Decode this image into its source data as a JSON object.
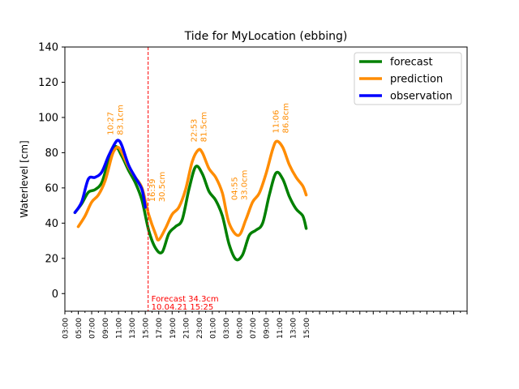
{
  "chart_data": {
    "type": "line",
    "title": "Tide for MyLocation (ebbing)",
    "xlabel": "",
    "ylabel": "Waterlevel [cm]",
    "ylim": [
      -10,
      140
    ],
    "xlim_hours": [
      3,
      63
    ],
    "yticks": [
      0,
      20,
      40,
      60,
      80,
      100,
      120,
      140
    ],
    "xtick_labels": [
      "03:00",
      "05:00",
      "07:00",
      "09:00",
      "11:00",
      "13:00",
      "15:00",
      "17:00",
      "19:00",
      "21:00",
      "23:00",
      "01:00",
      "03:00",
      "05:00",
      "07:00",
      "09:00",
      "11:00",
      "13:00",
      "15:00"
    ],
    "grid": false,
    "legend_position": "top-right",
    "series": [
      {
        "name": "forecast",
        "color": "#008000",
        "points": [
          [
            4.5,
            46
          ],
          [
            5.5,
            51
          ],
          [
            6.5,
            57.5
          ],
          [
            7.5,
            59
          ],
          [
            8.5,
            63
          ],
          [
            9.5,
            75
          ],
          [
            10.5,
            83.5
          ],
          [
            11.5,
            78
          ],
          [
            12.5,
            70
          ],
          [
            13.5,
            63
          ],
          [
            14.5,
            53
          ],
          [
            15.5,
            36
          ],
          [
            16.5,
            26
          ],
          [
            17.5,
            23.5
          ],
          [
            18.5,
            34
          ],
          [
            19.5,
            38
          ],
          [
            20.5,
            42
          ],
          [
            21.5,
            59
          ],
          [
            22.5,
            72
          ],
          [
            23.5,
            68
          ],
          [
            24.5,
            58
          ],
          [
            25.5,
            53
          ],
          [
            26.5,
            44
          ],
          [
            27.5,
            28
          ],
          [
            28.5,
            19.5
          ],
          [
            29.5,
            22
          ],
          [
            30.5,
            33
          ],
          [
            31.5,
            36
          ],
          [
            32.5,
            40
          ],
          [
            33.5,
            56
          ],
          [
            34.5,
            68.5
          ],
          [
            35.5,
            65
          ],
          [
            36.5,
            55
          ],
          [
            37.5,
            48
          ],
          [
            38.5,
            44
          ],
          [
            39.0,
            37
          ]
        ]
      },
      {
        "name": "prediction",
        "color": "#ff8c00",
        "points": [
          [
            5.0,
            38
          ],
          [
            6.0,
            44
          ],
          [
            7.0,
            52
          ],
          [
            8.0,
            56
          ],
          [
            9.0,
            64
          ],
          [
            10.0,
            78
          ],
          [
            10.5,
            82
          ],
          [
            11.0,
            83
          ],
          [
            11.5,
            80
          ],
          [
            12.5,
            72
          ],
          [
            13.5,
            66
          ],
          [
            14.5,
            60
          ],
          [
            15.5,
            45
          ],
          [
            16.5,
            34
          ],
          [
            17.0,
            30.5
          ],
          [
            18.0,
            37
          ],
          [
            19.0,
            45
          ],
          [
            20.0,
            49
          ],
          [
            21.0,
            59
          ],
          [
            22.0,
            75
          ],
          [
            22.9,
            81.5
          ],
          [
            23.5,
            80
          ],
          [
            24.5,
            71
          ],
          [
            25.5,
            66
          ],
          [
            26.5,
            57
          ],
          [
            27.5,
            40
          ],
          [
            28.9,
            33
          ],
          [
            30.0,
            42
          ],
          [
            31.0,
            52
          ],
          [
            32.0,
            57
          ],
          [
            33.0,
            68
          ],
          [
            34.0,
            82
          ],
          [
            34.6,
            86.5
          ],
          [
            35.5,
            83
          ],
          [
            36.5,
            73
          ],
          [
            37.5,
            66
          ],
          [
            38.5,
            61
          ],
          [
            39.0,
            56
          ]
        ]
      },
      {
        "name": "observation",
        "color": "#0000ff",
        "points": [
          [
            4.5,
            46
          ],
          [
            5.5,
            52
          ],
          [
            6.5,
            65
          ],
          [
            7.5,
            66
          ],
          [
            8.5,
            69
          ],
          [
            9.5,
            78
          ],
          [
            10.5,
            85.5
          ],
          [
            11.0,
            87
          ],
          [
            11.5,
            84
          ],
          [
            12.5,
            73
          ],
          [
            13.5,
            66
          ],
          [
            14.5,
            59
          ],
          [
            15.0,
            49
          ]
        ]
      }
    ],
    "annotations": [
      {
        "x": 10.45,
        "y": 90,
        "lines": [
          "10:27",
          "83.1cm"
        ],
        "color": "#ff8c00"
      },
      {
        "x": 16.65,
        "y": 52,
        "lines": [
          "16:39",
          "30.5cm"
        ],
        "color": "#ff8c00"
      },
      {
        "x": 22.88,
        "y": 86,
        "lines": [
          "22:53",
          "81.5cm"
        ],
        "color": "#ff8c00"
      },
      {
        "x": 28.92,
        "y": 53,
        "lines": [
          "04:55",
          "33.0cm"
        ],
        "color": "#ff8c00"
      },
      {
        "x": 35.1,
        "y": 91,
        "lines": [
          "11:06",
          "86.8cm"
        ],
        "color": "#ff8c00"
      }
    ],
    "forecast_marker": {
      "x": 15.42,
      "color": "#ff0000",
      "label_line1": "Forecast 34.3cm",
      "label_line2": "10.04.21 15:25"
    }
  }
}
